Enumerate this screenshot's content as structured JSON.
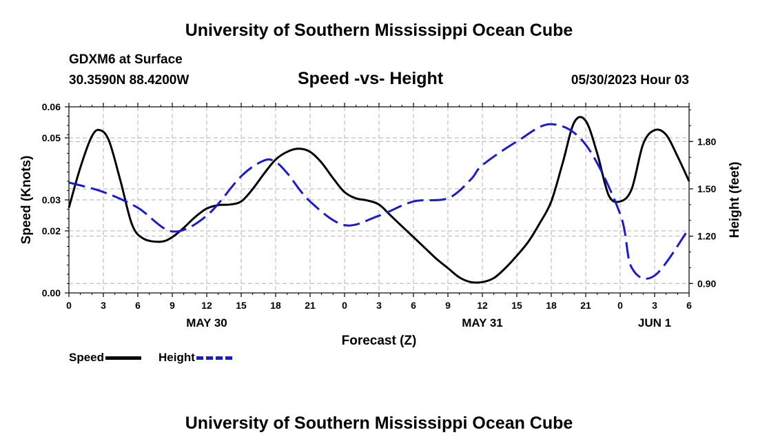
{
  "page": {
    "title_top": "University of Southern Mississippi Ocean Cube",
    "title_bottom": "University of Southern Mississippi Ocean Cube",
    "station": "GDXM6 at Surface",
    "coords": "30.3590N  88.4200W",
    "chart_title": "Speed -vs- Height",
    "datetime": "05/30/2023 Hour 03"
  },
  "colors": {
    "speed": "#000000",
    "height": "#1a1ad6",
    "grid": "#b0b0b0"
  },
  "chart_data": {
    "type": "line",
    "title": "Speed -vs- Height",
    "xlabel": "Forecast (Z)",
    "ylabel": "Speed (Knots)",
    "y2label": "Height (feet)",
    "x_hours_range": [
      0,
      54
    ],
    "ylim": [
      0,
      0.06
    ],
    "y2lim": [
      0.84,
      2.02
    ],
    "x_tick_hours": [
      0,
      3,
      6,
      9,
      12,
      15,
      18,
      21,
      24,
      27,
      30,
      33,
      36,
      39,
      42,
      45,
      48,
      51,
      54
    ],
    "x_tick_labels": [
      "0",
      "3",
      "6",
      "9",
      "12",
      "15",
      "18",
      "21",
      "0",
      "3",
      "6",
      "9",
      "12",
      "15",
      "18",
      "21",
      "0",
      "3",
      "6"
    ],
    "y_ticks": [
      0,
      0.02,
      0.03,
      0.05,
      0.06
    ],
    "y_tick_labels": [
      "0.00",
      "0.02",
      "0.03",
      "0.05",
      "0.06"
    ],
    "y2_ticks": [
      0.9,
      1.2,
      1.5,
      1.8
    ],
    "y2_tick_labels": [
      "0.90",
      "1.20",
      "1.50",
      "1.80"
    ],
    "date_labels": [
      {
        "hour": 12,
        "label": "MAY 30"
      },
      {
        "hour": 36,
        "label": "MAY 31"
      },
      {
        "hour": 51,
        "label": "JUN 1"
      }
    ],
    "grid": true,
    "legend_position": "bottom-left",
    "series": [
      {
        "name": "Speed",
        "axis": "left",
        "style": "solid",
        "x": [
          0,
          1,
          2,
          2.7,
          3.5,
          4.5,
          5.5,
          6.5,
          8,
          9,
          10,
          11,
          12,
          13,
          14,
          15,
          16,
          17,
          18,
          19,
          20,
          21,
          22,
          23,
          24,
          25,
          26,
          27,
          28,
          29,
          30,
          31,
          32,
          33,
          34,
          35,
          36,
          37,
          38,
          39,
          40,
          41,
          42,
          43,
          44,
          45,
          46,
          47,
          48,
          49,
          50,
          51,
          52,
          53,
          54
        ],
        "y": [
          0.0275,
          0.0405,
          0.0505,
          0.0525,
          0.049,
          0.036,
          0.022,
          0.0175,
          0.0165,
          0.018,
          0.021,
          0.0245,
          0.0272,
          0.0283,
          0.0285,
          0.0295,
          0.0335,
          0.0385,
          0.043,
          0.0455,
          0.0465,
          0.0455,
          0.042,
          0.037,
          0.0325,
          0.0305,
          0.0298,
          0.0285,
          0.025,
          0.0215,
          0.018,
          0.0145,
          0.011,
          0.008,
          0.005,
          0.0035,
          0.0035,
          0.0048,
          0.008,
          0.012,
          0.0165,
          0.0225,
          0.0295,
          0.042,
          0.055,
          0.0555,
          0.045,
          0.0315,
          0.0295,
          0.0335,
          0.048,
          0.0525,
          0.051,
          0.044,
          0.036
        ]
      },
      {
        "name": "Height",
        "axis": "right",
        "style": "dashed",
        "x": [
          0,
          3,
          6,
          9,
          12,
          15,
          17,
          18,
          19,
          21,
          24,
          27,
          30,
          33,
          35,
          36,
          39,
          42,
          45,
          48,
          49,
          51,
          54
        ],
        "y": [
          1.54,
          1.48,
          1.38,
          1.23,
          1.33,
          1.58,
          1.68,
          1.67,
          1.6,
          1.42,
          1.27,
          1.33,
          1.42,
          1.44,
          1.56,
          1.65,
          1.8,
          1.91,
          1.78,
          1.34,
          1.0,
          0.95,
          1.25
        ]
      }
    ]
  }
}
